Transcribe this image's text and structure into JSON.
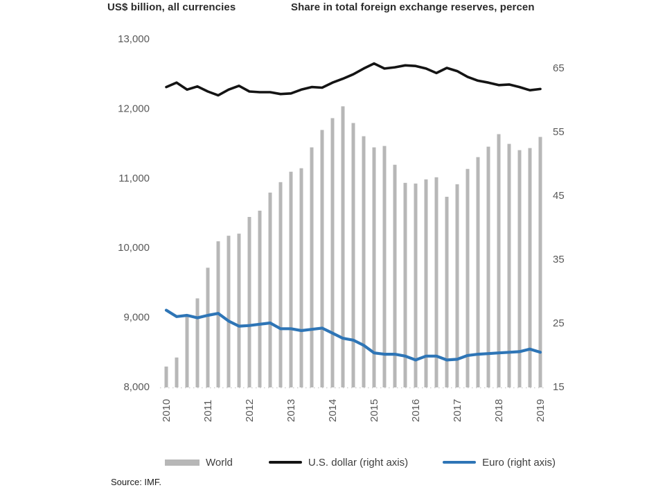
{
  "titles": {
    "left": "US$ billion, all currencies",
    "right": "Share in total foreign exchange reserves, percen"
  },
  "legend": {
    "items": [
      {
        "label": "World",
        "swatch": "bar",
        "color": "#b7b7b7"
      },
      {
        "label": "U.S. dollar (right axis)",
        "swatch": "line",
        "color": "#141414"
      },
      {
        "label": "Euro (right axis)",
        "swatch": "line",
        "color": "#2e75b6"
      }
    ]
  },
  "source": "Source: IMF.",
  "chart_data": {
    "type": "bar",
    "subtype": "dual-axis bar and line",
    "title": "",
    "x": [
      "2010 Q1",
      "2010 Q2",
      "2010 Q3",
      "2010 Q4",
      "2011 Q1",
      "2011 Q2",
      "2011 Q3",
      "2011 Q4",
      "2012 Q1",
      "2012 Q2",
      "2012 Q3",
      "2012 Q4",
      "2013 Q1",
      "2013 Q2",
      "2013 Q3",
      "2013 Q4",
      "2014 Q1",
      "2014 Q2",
      "2014 Q3",
      "2014 Q4",
      "2015 Q1",
      "2015 Q2",
      "2015 Q3",
      "2015 Q4",
      "2016 Q1",
      "2016 Q2",
      "2016 Q3",
      "2016 Q4",
      "2017 Q1",
      "2017 Q2",
      "2017 Q3",
      "2017 Q4",
      "2018 Q1",
      "2018 Q2",
      "2018 Q3",
      "2018 Q4",
      "2019 Q1"
    ],
    "x_year_ticks": [
      "2010",
      "2011",
      "2012",
      "2013",
      "2014",
      "2015",
      "2016",
      "2017",
      "2018",
      "2019"
    ],
    "series": [
      {
        "name": "World",
        "type": "bar",
        "axis": "left",
        "unit": "US$ billion",
        "color": "#b7b7b7",
        "values": [
          8290,
          8420,
          9010,
          9270,
          9710,
          10090,
          10170,
          10200,
          10440,
          10530,
          10790,
          10940,
          11090,
          11140,
          11440,
          11690,
          11860,
          12030,
          11790,
          11600,
          11440,
          11460,
          11190,
          10930,
          10920,
          10980,
          11010,
          10730,
          10910,
          11130,
          11300,
          11450,
          11630,
          11490,
          11400,
          11430,
          11590
        ]
      },
      {
        "name": "U.S. dollar (right axis)",
        "type": "line",
        "axis": "right",
        "unit": "percent",
        "color": "#141414",
        "values": [
          62.0,
          62.7,
          61.6,
          62.1,
          61.3,
          60.7,
          61.6,
          62.2,
          61.3,
          61.2,
          61.2,
          60.9,
          61.0,
          61.6,
          62.0,
          61.9,
          62.7,
          63.3,
          64.0,
          64.9,
          65.7,
          64.9,
          65.1,
          65.4,
          65.3,
          64.9,
          64.2,
          65.0,
          64.5,
          63.6,
          63.0,
          62.7,
          62.3,
          62.4,
          62.0,
          61.5,
          61.7
        ]
      },
      {
        "name": "Euro (right axis)",
        "type": "line",
        "axis": "right",
        "unit": "percent",
        "color": "#2e75b6",
        "values": [
          27.0,
          26.0,
          26.2,
          25.8,
          26.2,
          26.5,
          25.3,
          24.5,
          24.6,
          24.8,
          25.0,
          24.1,
          24.1,
          23.8,
          24.0,
          24.2,
          23.4,
          22.6,
          22.3,
          21.5,
          20.3,
          20.1,
          20.1,
          19.8,
          19.2,
          19.8,
          19.8,
          19.2,
          19.3,
          19.9,
          20.1,
          20.2,
          20.3,
          20.4,
          20.5,
          20.9,
          20.4
        ]
      }
    ],
    "left_axis": {
      "label": "US$ billion, all currencies",
      "range": [
        8000,
        13000
      ],
      "ticks": [
        8000,
        9000,
        10000,
        11000,
        12000,
        13000
      ],
      "tick_labels": [
        "8,000",
        "9,000",
        "10,000",
        "11,000",
        "12,000",
        "13,000"
      ]
    },
    "right_axis": {
      "label": "Share in total foreign exchange reserves, percen",
      "range": [
        15,
        65
      ],
      "ticks": [
        15,
        25,
        35,
        45,
        55,
        65
      ],
      "tick_labels": [
        "15",
        "25",
        "35",
        "45",
        "55",
        "65"
      ]
    },
    "grid": false,
    "legend_position": "bottom"
  }
}
